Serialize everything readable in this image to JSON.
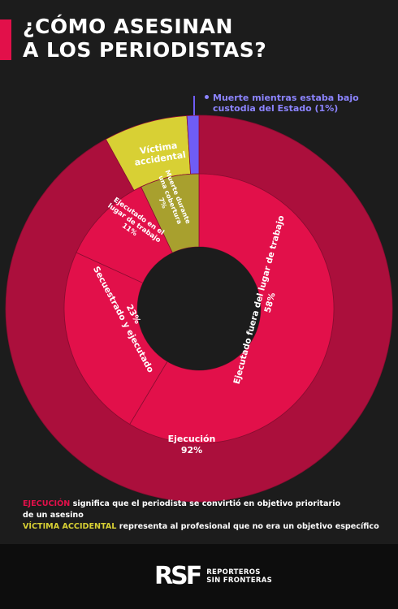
{
  "title": {
    "line1": "¿CÓMO ASESINAN",
    "line2": "A LOS PERIODISTAS?"
  },
  "colors": {
    "accent": "#e2104a",
    "execution_outer": "#ab0f3c",
    "execution_inner": "#e2104a",
    "accidental_outer": "#d8d034",
    "accidental_inner": "#a8a02e",
    "custody": "#6f5df5",
    "background": "#1c1c1c"
  },
  "chart_data": {
    "type": "donut",
    "rings": [
      {
        "level": "outer",
        "slices": [
          {
            "label": "Ejecución",
            "value": 92,
            "value_label": "92%"
          },
          {
            "label": "Víctima accidental",
            "value": 7,
            "value_label": ""
          },
          {
            "label": "Muerte mientras estaba bajo custodia del Estado",
            "value": 1,
            "value_label": "(1%)"
          }
        ]
      },
      {
        "level": "inner",
        "slices": [
          {
            "label": "Ejecutado fuera del lugar de trabajo",
            "value": 58,
            "value_label": "58%",
            "parent": "Ejecución"
          },
          {
            "label": "Secuestrado y ejecutado",
            "value": 23,
            "value_label": "23%",
            "parent": "Ejecución"
          },
          {
            "label": "Ejecutado en el lugar de trabajo",
            "value": 11,
            "value_label": "11%",
            "parent": "Ejecución"
          },
          {
            "label": "Muerte durante una cobertura",
            "value": 7,
            "value_label": "7%",
            "parent": "Víctima accidental"
          }
        ]
      }
    ]
  },
  "labels": {
    "execution_outer_name": "Ejecución",
    "execution_outer_pct": "92%",
    "accidental_line1": "Víctima",
    "accidental_line2": "accidental",
    "custody_line1": "Muerte mientras estaba bajo",
    "custody_line2": "custodia del Estado (1%)",
    "outside_workplace_name": "Ejecutado fuera del lugar de trabajo",
    "outside_workplace_pct": "58%",
    "kidnapped_name": "Secuestrado y ejecutado",
    "kidnapped_pct": "23%",
    "workplace_line1": "Ejecutado en el",
    "workplace_line2": "lugar de trabajo",
    "workplace_pct": "11%",
    "coverage_line1": "Muerte durante",
    "coverage_line2": "una cobertura",
    "coverage_pct": "7%"
  },
  "footnote": {
    "execution_keyword": "EJECUCIÓN",
    "execution_text": " significa que el periodista se convirtió en objetivo prioritario",
    "execution_text2": "de un asesino",
    "accidental_keyword": "VÍCTIMA ACCIDENTAL",
    "accidental_text": " representa al profesional que no era un objetivo específico"
  },
  "footer": {
    "logo_mark": "RSF",
    "logo_line1": "REPORTEROS",
    "logo_line2": "SIN FRONTERAS"
  }
}
